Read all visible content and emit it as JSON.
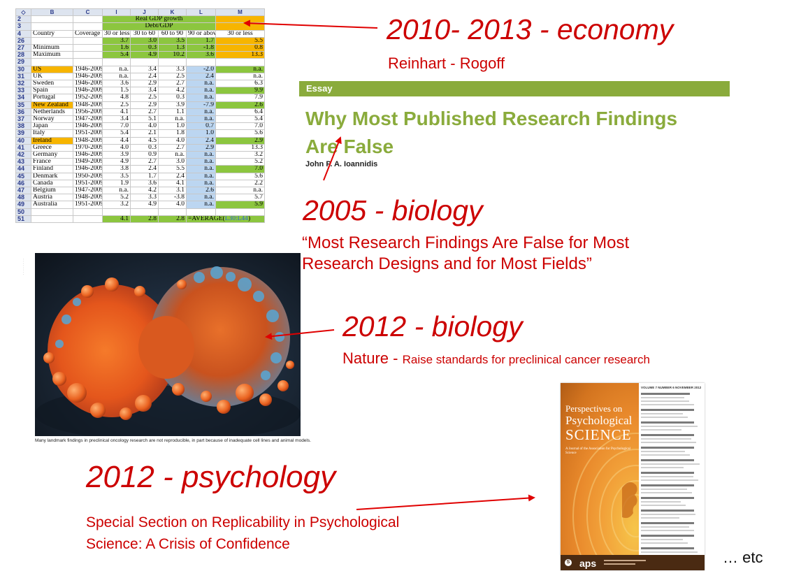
{
  "spreadsheet": {
    "col_headers": [
      "◇",
      "B",
      "C",
      "I",
      "J",
      "K",
      "L",
      "M"
    ],
    "header_row2": "Real GDP growth",
    "header_row3": "Debt/GDP",
    "columns": [
      "Country",
      "Coverage",
      "30 or less",
      "30 to 60",
      "60 to 90",
      "90 or above",
      "30 or less"
    ],
    "rows": [
      {
        "n": "26",
        "country": "",
        "coverage": "",
        "v": [
          "3.7",
          "3.0",
          "3.5",
          "1.7",
          "5.5"
        ],
        "style": "stat"
      },
      {
        "n": "27",
        "country": "Minimum",
        "coverage": "",
        "v": [
          "1.6",
          "0.3",
          "1.3",
          "-1.8",
          "0.8"
        ],
        "style": "stat"
      },
      {
        "n": "28",
        "country": "Maximum",
        "coverage": "",
        "v": [
          "5.4",
          "4.9",
          "10.2",
          "3.6",
          "13.3"
        ],
        "style": "stat"
      },
      {
        "n": "29",
        "country": "",
        "coverage": "",
        "v": [
          "",
          "",
          "",
          "",
          ""
        ],
        "style": "blank"
      },
      {
        "n": "30",
        "country": "US",
        "coverage": "1946-2009",
        "v": [
          "n.a.",
          "3.4",
          "3.3",
          "-2.0",
          "n.a."
        ],
        "hl": true,
        "mg": true
      },
      {
        "n": "31",
        "country": "UK",
        "coverage": "1946-2009",
        "v": [
          "n.a.",
          "2.4",
          "2.5",
          "2.4",
          "n.a."
        ]
      },
      {
        "n": "32",
        "country": "Sweden",
        "coverage": "1946-2009",
        "v": [
          "3.6",
          "2.9",
          "2.7",
          "n.a.",
          "6.3"
        ]
      },
      {
        "n": "33",
        "country": "Spain",
        "coverage": "1946-2009",
        "v": [
          "1.5",
          "3.4",
          "4.2",
          "n.a.",
          "9.9"
        ],
        "mg": true
      },
      {
        "n": "34",
        "country": "Portugal",
        "coverage": "1952-2009",
        "v": [
          "4.8",
          "2.5",
          "0.3",
          "n.a.",
          "7.9"
        ]
      },
      {
        "n": "35",
        "country": "New Zealand",
        "coverage": "1948-2009",
        "v": [
          "2.5",
          "2.9",
          "3.9",
          "-7.9",
          "2.6"
        ],
        "hl": true,
        "mg": true
      },
      {
        "n": "36",
        "country": "Netherlands",
        "coverage": "1956-2009",
        "v": [
          "4.1",
          "2.7",
          "1.1",
          "n.a.",
          "6.4"
        ]
      },
      {
        "n": "37",
        "country": "Norway",
        "coverage": "1947-2009",
        "v": [
          "3.4",
          "5.1",
          "n.a.",
          "n.a.",
          "5.4"
        ]
      },
      {
        "n": "38",
        "country": "Japan",
        "coverage": "1946-2009",
        "v": [
          "7.0",
          "4.0",
          "1.0",
          "0.7",
          "7.0"
        ]
      },
      {
        "n": "39",
        "country": "Italy",
        "coverage": "1951-2009",
        "v": [
          "5.4",
          "2.1",
          "1.8",
          "1.0",
          "5.6"
        ]
      },
      {
        "n": "40",
        "country": "Ireland",
        "coverage": "1948-2009",
        "v": [
          "4.4",
          "4.5",
          "4.0",
          "2.4",
          "2.9"
        ],
        "hl": true,
        "mg": true
      },
      {
        "n": "41",
        "country": "Greece",
        "coverage": "1970-2009",
        "v": [
          "4.0",
          "0.3",
          "2.7",
          "2.9",
          "13.3"
        ]
      },
      {
        "n": "42",
        "country": "Germany",
        "coverage": "1946-2009",
        "v": [
          "3.9",
          "0.9",
          "n.a.",
          "n.a.",
          "3.2"
        ]
      },
      {
        "n": "43",
        "country": "France",
        "coverage": "1949-2009",
        "v": [
          "4.9",
          "2.7",
          "3.0",
          "n.a.",
          "5.2"
        ]
      },
      {
        "n": "44",
        "country": "Finland",
        "coverage": "1946-2009",
        "v": [
          "3.8",
          "2.4",
          "5.5",
          "n.a.",
          "7.0"
        ],
        "mg": true
      },
      {
        "n": "45",
        "country": "Denmark",
        "coverage": "1950-2009",
        "v": [
          "3.5",
          "1.7",
          "2.4",
          "n.a.",
          "5.6"
        ]
      },
      {
        "n": "46",
        "country": "Canada",
        "coverage": "1951-2009",
        "v": [
          "1.9",
          "3.6",
          "4.1",
          "n.a.",
          "2.2"
        ]
      },
      {
        "n": "47",
        "country": "Belgium",
        "coverage": "1947-2009",
        "v": [
          "n.a.",
          "4.2",
          "3.1",
          "2.6",
          "n.a."
        ]
      },
      {
        "n": "48",
        "country": "Austria",
        "coverage": "1948-2009",
        "v": [
          "5.2",
          "3.3",
          "-3.8",
          "n.a.",
          "5.7"
        ]
      },
      {
        "n": "49",
        "country": "Australia",
        "coverage": "1951-2009",
        "v": [
          "3.2",
          "4.9",
          "4.0",
          "n.a.",
          "5.9"
        ],
        "mg": true
      },
      {
        "n": "50",
        "country": "",
        "coverage": "",
        "v": [
          "",
          "",
          "",
          "",
          ""
        ],
        "style": "blank"
      }
    ],
    "last_row": {
      "n": "51",
      "v": [
        "4.1",
        "2.8",
        "2.8"
      ],
      "formula": "=AVERAGE(",
      "range": "L30:L44",
      "close": ")"
    }
  },
  "annotations": {
    "economy_title": "2010- 2013 - economy",
    "economy_sub": "Reinhart - Rogoff",
    "biology2005_title": "2005 - biology",
    "biology2005_quote_line1": "“Most Research Findings Are False for Most",
    "biology2005_quote_line2": "Research Designs and for Most Fields”",
    "biology2012_title": "2012 - biology",
    "biology2012_source": "Nature - ",
    "biology2012_sub": "Raise standards for preclinical cancer research",
    "psychology_title": "2012 - psychology",
    "psychology_sub_line1": "Special Section on Replicability in Psychological",
    "psychology_sub_line2": "Science: A Crisis of Confidence",
    "etc": "… etc"
  },
  "essay": {
    "label": "Essay",
    "title_line1": "Why Most Published Research Findings",
    "title_line2": "Are False",
    "author": "John P. A. Ioannidis"
  },
  "cell_image": {
    "caption": "Many landmark findings in preclinical oncology research are not reproducible, in part because of inadequate cell lines and animal models."
  },
  "journal": {
    "title_line1": "Perspectives on",
    "title_line2": "Psychological",
    "title_line3": "SCIENCE",
    "subtitle": "A Journal of the Association for Psychological Science",
    "issue": "VOLUME 7  NUMBER 6  NOVEMBER 2012",
    "publisher": "aps"
  },
  "colors": {
    "annotation_red": "#cc0000",
    "essay_green": "#8aab3c",
    "sheet_green": "#8cc63f",
    "sheet_orange": "#f7b500",
    "sheet_blue": "#bcd6f1"
  }
}
